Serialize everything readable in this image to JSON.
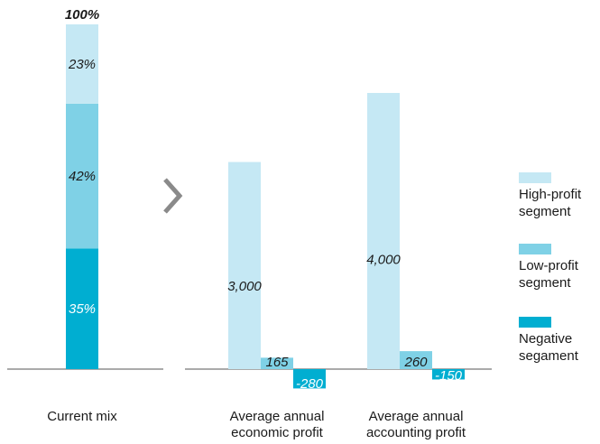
{
  "colors": {
    "high_profit": "#c5e8f4",
    "low_profit": "#7fd1e6",
    "negative": "#00aed1",
    "axis": "#555555",
    "arrow": "#8a8a8a"
  },
  "arrow_icon": "chevron-right-icon",
  "legend": {
    "items": [
      {
        "key": "high_profit",
        "lines": [
          "High-profit",
          "segment"
        ]
      },
      {
        "key": "low_profit",
        "lines": [
          "Low-profit",
          "segment"
        ]
      },
      {
        "key": "negative",
        "lines": [
          "Negative",
          "segament"
        ]
      }
    ]
  },
  "chart_data": [
    {
      "type": "bar",
      "stacked": true,
      "category_lines": [
        "Current mix"
      ],
      "total_label": "100%",
      "ylim": [
        0,
        100
      ],
      "segments": [
        {
          "key": "negative",
          "value": 35,
          "label": "35%"
        },
        {
          "key": "low_profit",
          "value": 42,
          "label": "42%"
        },
        {
          "key": "high_profit",
          "value": 23,
          "label": "23%"
        }
      ]
    },
    {
      "type": "bar",
      "stacked": false,
      "ylim": [
        -600,
        4600
      ],
      "series_keys": [
        "high_profit",
        "low_profit",
        "negative"
      ],
      "groups": [
        {
          "category_lines": [
            "Average annual",
            "economic profit"
          ],
          "values": [
            3000,
            165,
            -280
          ],
          "labels": [
            "3,000",
            "165",
            "-280"
          ]
        },
        {
          "category_lines": [
            "Average annual",
            "accounting profit"
          ],
          "values": [
            4000,
            260,
            -150
          ],
          "labels": [
            "4,000",
            "260",
            "-150"
          ]
        }
      ]
    }
  ]
}
